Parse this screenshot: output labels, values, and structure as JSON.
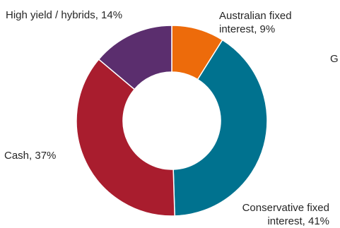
{
  "chart_data": {
    "type": "pie",
    "donut": true,
    "start_angle_deg": 0,
    "direction": "clockwise",
    "slices": [
      {
        "label_line1": "Australian fixed",
        "label_line2": "interest, 9%",
        "value": 9,
        "color": "#ED6B0B"
      },
      {
        "label_line1": "Conservative fixed",
        "label_line2": "interest, 41%",
        "value": 41,
        "color": "#00728F"
      },
      {
        "label_line1": "Cash, 37%",
        "label_line2": "",
        "value": 37,
        "color": "#A91D2E"
      },
      {
        "label_line1": "High yield / hybrids, 14%",
        "label_line2": "",
        "value": 14,
        "color": "#5B2E6E"
      }
    ],
    "legend": "none"
  },
  "stray_text": "G"
}
